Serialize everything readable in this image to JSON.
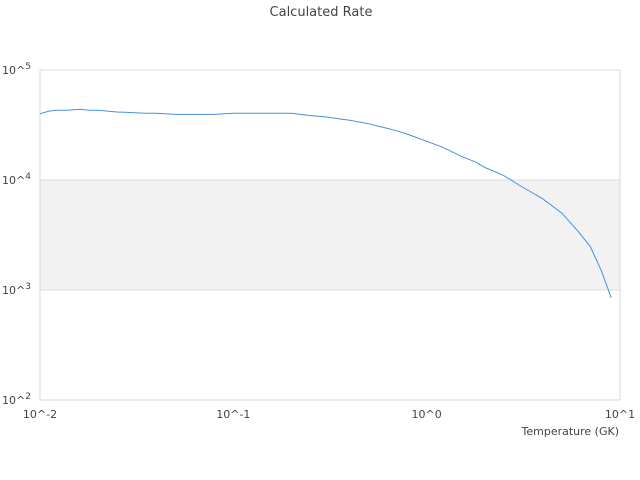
{
  "chart_data": {
    "type": "line",
    "title": "Calculated Rate",
    "xlabel": "Temperature (GK)",
    "ylabel": "",
    "xscale": "log",
    "yscale": "log",
    "xlim": [
      0.01,
      10
    ],
    "ylim": [
      100,
      100000
    ],
    "x_ticks": [
      "10^-2",
      "10^-1",
      "10^0",
      "10^1"
    ],
    "y_ticks": [
      "10^2",
      "10^3",
      "10^4",
      "10^5"
    ],
    "grid": "horizontal",
    "banding": "alternating",
    "legend": "none",
    "series": [
      {
        "color": "#4a90d9",
        "x": [
          0.01,
          0.011,
          0.012,
          0.014,
          0.016,
          0.018,
          0.02,
          0.025,
          0.03,
          0.035,
          0.04,
          0.05,
          0.06,
          0.08,
          0.1,
          0.12,
          0.15,
          0.2,
          0.25,
          0.3,
          0.35,
          0.4,
          0.5,
          0.6,
          0.7,
          0.8,
          1.0,
          1.2,
          1.5,
          1.8,
          2.0,
          2.5,
          3.0,
          3.5,
          4.0,
          5.0,
          6.0,
          7.0,
          8.0,
          9.0
        ],
        "y": [
          40000,
          42000,
          43000,
          43000,
          44000,
          43000,
          43000,
          41500,
          41000,
          40500,
          40500,
          39500,
          39500,
          39500,
          40500,
          40500,
          40500,
          40500,
          38500,
          37500,
          36000,
          35000,
          32500,
          30000,
          28000,
          26000,
          22500,
          20000,
          16500,
          14500,
          13000,
          11000,
          9000,
          7700,
          6700,
          5000,
          3500,
          2500,
          1500,
          850
        ]
      }
    ]
  }
}
